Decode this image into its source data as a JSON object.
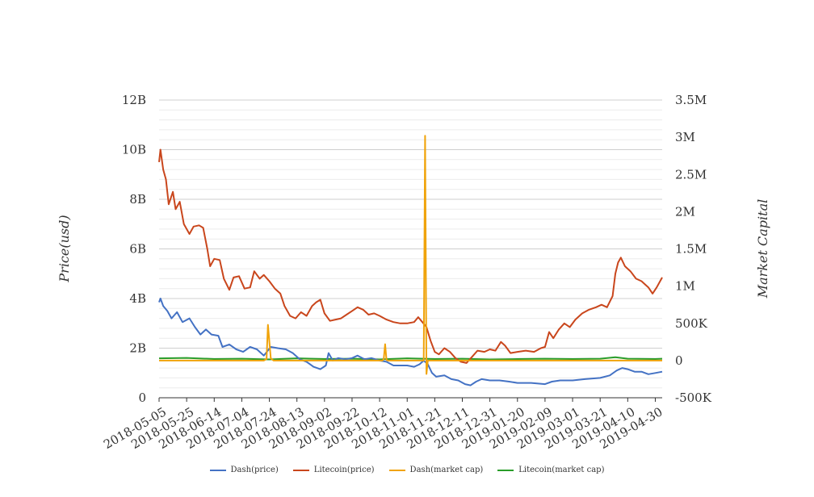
{
  "chart_data": {
    "type": "line",
    "y_left": {
      "label": "Price(usd)",
      "range": [
        0,
        12000000000
      ],
      "ticks": [
        0,
        2000000000,
        4000000000,
        6000000000,
        8000000000,
        10000000000,
        12000000000
      ],
      "tick_labels": [
        "0",
        "2B",
        "4B",
        "6B",
        "8B",
        "10B",
        "12B"
      ]
    },
    "y_right": {
      "label": "Market Capital",
      "range": [
        -500000,
        3500000
      ],
      "ticks": [
        -500000,
        0,
        500000,
        1000000,
        1500000,
        2000000,
        2500000,
        3000000,
        3500000
      ],
      "tick_labels": [
        "-500K",
        "0",
        "500K",
        "1M",
        "1.5M",
        "2M",
        "2.5M",
        "3M",
        "3.5M"
      ]
    },
    "x": {
      "range": [
        "2018-05-05",
        "2019-05-05"
      ],
      "tick_labels": [
        "2018-05-05",
        "2018-05-25",
        "2018-06-14",
        "2018-07-04",
        "2018-07-24",
        "2018-08-13",
        "2018-09-02",
        "2018-09-22",
        "2018-10-12",
        "2018-11-01",
        "2018-11-21",
        "2018-12-11",
        "2018-12-31",
        "2019-01-20",
        "2019-02-09",
        "2019-03-01",
        "2019-03-21",
        "2019-04-10",
        "2019-04-30"
      ]
    },
    "grid": true,
    "legend_position": "bottom",
    "series": [
      {
        "name": "Dash(price)",
        "axis": "left",
        "color": "#4472c4",
        "points": [
          [
            "2018-05-05",
            3.85
          ],
          [
            "2018-05-06",
            4.0
          ],
          [
            "2018-05-08",
            3.7
          ],
          [
            "2018-05-11",
            3.5
          ],
          [
            "2018-05-14",
            3.2
          ],
          [
            "2018-05-18",
            3.45
          ],
          [
            "2018-05-22",
            3.05
          ],
          [
            "2018-05-27",
            3.2
          ],
          [
            "2018-05-31",
            2.85
          ],
          [
            "2018-06-04",
            2.55
          ],
          [
            "2018-06-08",
            2.75
          ],
          [
            "2018-06-12",
            2.55
          ],
          [
            "2018-06-17",
            2.5
          ],
          [
            "2018-06-20",
            2.05
          ],
          [
            "2018-06-25",
            2.15
          ],
          [
            "2018-06-30",
            1.95
          ],
          [
            "2018-07-05",
            1.85
          ],
          [
            "2018-07-10",
            2.05
          ],
          [
            "2018-07-15",
            1.95
          ],
          [
            "2018-07-20",
            1.7
          ],
          [
            "2018-07-25",
            2.05
          ],
          [
            "2018-07-30",
            2.0
          ],
          [
            "2018-08-05",
            1.95
          ],
          [
            "2018-08-10",
            1.8
          ],
          [
            "2018-08-15",
            1.55
          ],
          [
            "2018-08-20",
            1.45
          ],
          [
            "2018-08-25",
            1.25
          ],
          [
            "2018-08-30",
            1.15
          ],
          [
            "2018-09-03",
            1.3
          ],
          [
            "2018-09-05",
            1.8
          ],
          [
            "2018-09-08",
            1.5
          ],
          [
            "2018-09-12",
            1.6
          ],
          [
            "2018-09-17",
            1.55
          ],
          [
            "2018-09-22",
            1.6
          ],
          [
            "2018-09-26",
            1.7
          ],
          [
            "2018-10-01",
            1.55
          ],
          [
            "2018-10-06",
            1.6
          ],
          [
            "2018-10-12",
            1.5
          ],
          [
            "2018-10-17",
            1.45
          ],
          [
            "2018-10-22",
            1.3
          ],
          [
            "2018-10-27",
            1.3
          ],
          [
            "2018-11-01",
            1.3
          ],
          [
            "2018-11-06",
            1.25
          ],
          [
            "2018-11-10",
            1.35
          ],
          [
            "2018-11-13",
            1.5
          ],
          [
            "2018-11-16",
            1.35
          ],
          [
            "2018-11-19",
            1.0
          ],
          [
            "2018-11-22",
            0.85
          ],
          [
            "2018-11-28",
            0.9
          ],
          [
            "2018-12-03",
            0.75
          ],
          [
            "2018-12-08",
            0.7
          ],
          [
            "2018-12-13",
            0.55
          ],
          [
            "2018-12-17",
            0.5
          ],
          [
            "2018-12-21",
            0.65
          ],
          [
            "2018-12-25",
            0.75
          ],
          [
            "2018-12-31",
            0.7
          ],
          [
            "2019-01-07",
            0.7
          ],
          [
            "2019-01-14",
            0.65
          ],
          [
            "2019-01-20",
            0.6
          ],
          [
            "2019-01-30",
            0.6
          ],
          [
            "2019-02-09",
            0.55
          ],
          [
            "2019-02-14",
            0.65
          ],
          [
            "2019-02-20",
            0.7
          ],
          [
            "2019-03-01",
            0.7
          ],
          [
            "2019-03-10",
            0.75
          ],
          [
            "2019-03-21",
            0.8
          ],
          [
            "2019-03-28",
            0.9
          ],
          [
            "2019-04-02",
            1.1
          ],
          [
            "2019-04-06",
            1.2
          ],
          [
            "2019-04-10",
            1.15
          ],
          [
            "2019-04-15",
            1.05
          ],
          [
            "2019-04-20",
            1.05
          ],
          [
            "2019-04-25",
            0.95
          ],
          [
            "2019-04-30",
            1.0
          ],
          [
            "2019-05-05",
            1.05
          ]
        ]
      },
      {
        "name": "Litecoin(price)",
        "axis": "left",
        "color": "#c9461c",
        "points": [
          [
            "2018-05-05",
            9.5
          ],
          [
            "2018-05-06",
            10.0
          ],
          [
            "2018-05-08",
            9.2
          ],
          [
            "2018-05-10",
            8.8
          ],
          [
            "2018-05-12",
            7.8
          ],
          [
            "2018-05-15",
            8.3
          ],
          [
            "2018-05-17",
            7.6
          ],
          [
            "2018-05-20",
            7.9
          ],
          [
            "2018-05-23",
            7.0
          ],
          [
            "2018-05-27",
            6.6
          ],
          [
            "2018-05-30",
            6.9
          ],
          [
            "2018-06-03",
            6.95
          ],
          [
            "2018-06-06",
            6.85
          ],
          [
            "2018-06-09",
            6.0
          ],
          [
            "2018-06-11",
            5.3
          ],
          [
            "2018-06-14",
            5.6
          ],
          [
            "2018-06-18",
            5.55
          ],
          [
            "2018-06-21",
            4.8
          ],
          [
            "2018-06-25",
            4.35
          ],
          [
            "2018-06-28",
            4.85
          ],
          [
            "2018-07-02",
            4.9
          ],
          [
            "2018-07-06",
            4.4
          ],
          [
            "2018-07-10",
            4.45
          ],
          [
            "2018-07-13",
            5.1
          ],
          [
            "2018-07-17",
            4.8
          ],
          [
            "2018-07-20",
            4.95
          ],
          [
            "2018-07-24",
            4.7
          ],
          [
            "2018-07-28",
            4.4
          ],
          [
            "2018-08-01",
            4.2
          ],
          [
            "2018-08-04",
            3.7
          ],
          [
            "2018-08-08",
            3.3
          ],
          [
            "2018-08-12",
            3.2
          ],
          [
            "2018-08-16",
            3.45
          ],
          [
            "2018-08-20",
            3.3
          ],
          [
            "2018-08-24",
            3.7
          ],
          [
            "2018-08-27",
            3.85
          ],
          [
            "2018-08-30",
            3.95
          ],
          [
            "2018-09-02",
            3.4
          ],
          [
            "2018-09-06",
            3.1
          ],
          [
            "2018-09-10",
            3.15
          ],
          [
            "2018-09-14",
            3.2
          ],
          [
            "2018-09-18",
            3.35
          ],
          [
            "2018-09-22",
            3.5
          ],
          [
            "2018-09-26",
            3.65
          ],
          [
            "2018-09-30",
            3.55
          ],
          [
            "2018-10-04",
            3.35
          ],
          [
            "2018-10-08",
            3.4
          ],
          [
            "2018-10-12",
            3.3
          ],
          [
            "2018-10-17",
            3.15
          ],
          [
            "2018-10-22",
            3.05
          ],
          [
            "2018-10-27",
            3.0
          ],
          [
            "2018-11-01",
            3.0
          ],
          [
            "2018-11-06",
            3.05
          ],
          [
            "2018-11-09",
            3.25
          ],
          [
            "2018-11-12",
            3.05
          ],
          [
            "2018-11-15",
            2.85
          ],
          [
            "2018-11-18",
            2.3
          ],
          [
            "2018-11-21",
            1.85
          ],
          [
            "2018-11-24",
            1.75
          ],
          [
            "2018-11-28",
            2.0
          ],
          [
            "2018-12-02",
            1.85
          ],
          [
            "2018-12-06",
            1.6
          ],
          [
            "2018-12-10",
            1.45
          ],
          [
            "2018-12-14",
            1.4
          ],
          [
            "2018-12-18",
            1.65
          ],
          [
            "2018-12-22",
            1.9
          ],
          [
            "2018-12-27",
            1.85
          ],
          [
            "2018-12-31",
            1.95
          ],
          [
            "2019-01-04",
            1.9
          ],
          [
            "2019-01-08",
            2.25
          ],
          [
            "2019-01-11",
            2.1
          ],
          [
            "2019-01-15",
            1.8
          ],
          [
            "2019-01-20",
            1.85
          ],
          [
            "2019-01-26",
            1.9
          ],
          [
            "2019-02-01",
            1.85
          ],
          [
            "2019-02-06",
            2.0
          ],
          [
            "2019-02-09",
            2.05
          ],
          [
            "2019-02-12",
            2.65
          ],
          [
            "2019-02-15",
            2.4
          ],
          [
            "2019-02-19",
            2.75
          ],
          [
            "2019-02-23",
            3.0
          ],
          [
            "2019-02-27",
            2.85
          ],
          [
            "2019-03-03",
            3.15
          ],
          [
            "2019-03-08",
            3.4
          ],
          [
            "2019-03-13",
            3.55
          ],
          [
            "2019-03-18",
            3.65
          ],
          [
            "2019-03-22",
            3.75
          ],
          [
            "2019-03-26",
            3.65
          ],
          [
            "2019-03-30",
            4.1
          ],
          [
            "2019-04-01",
            5.0
          ],
          [
            "2019-04-03",
            5.45
          ],
          [
            "2019-04-05",
            5.65
          ],
          [
            "2019-04-08",
            5.3
          ],
          [
            "2019-04-12",
            5.1
          ],
          [
            "2019-04-16",
            4.8
          ],
          [
            "2019-04-20",
            4.7
          ],
          [
            "2019-04-25",
            4.45
          ],
          [
            "2019-04-28",
            4.2
          ],
          [
            "2019-05-01",
            4.45
          ],
          [
            "2019-05-05",
            4.85
          ]
        ]
      },
      {
        "name": "Dash(market cap)",
        "axis": "right",
        "color": "#f0a30a",
        "points": [
          [
            "2018-05-05",
            0
          ],
          [
            "2018-07-20",
            0
          ],
          [
            "2018-07-22",
            20000
          ],
          [
            "2018-07-23",
            480000
          ],
          [
            "2018-07-25",
            30000
          ],
          [
            "2018-07-27",
            0
          ],
          [
            "2018-10-14",
            0
          ],
          [
            "2018-10-15",
            20000
          ],
          [
            "2018-10-16",
            220000
          ],
          [
            "2018-10-17",
            10000
          ],
          [
            "2018-10-18",
            0
          ],
          [
            "2018-11-13",
            0
          ],
          [
            "2018-11-14",
            3020000
          ],
          [
            "2018-11-15",
            -180000
          ],
          [
            "2018-11-16",
            0
          ],
          [
            "2019-05-05",
            0
          ]
        ]
      },
      {
        "name": "Litecoin(market cap)",
        "axis": "right",
        "color": "#2a9d2a",
        "points": [
          [
            "2018-05-05",
            30000
          ],
          [
            "2018-05-25",
            35000
          ],
          [
            "2018-06-14",
            20000
          ],
          [
            "2018-07-04",
            25000
          ],
          [
            "2018-07-24",
            15000
          ],
          [
            "2018-08-13",
            30000
          ],
          [
            "2018-09-02",
            20000
          ],
          [
            "2018-09-22",
            25000
          ],
          [
            "2018-10-12",
            15000
          ],
          [
            "2018-11-01",
            30000
          ],
          [
            "2018-11-21",
            20000
          ],
          [
            "2018-12-11",
            25000
          ],
          [
            "2018-12-31",
            15000
          ],
          [
            "2019-01-20",
            20000
          ],
          [
            "2019-02-09",
            25000
          ],
          [
            "2019-03-01",
            20000
          ],
          [
            "2019-03-21",
            25000
          ],
          [
            "2019-04-01",
            45000
          ],
          [
            "2019-04-10",
            25000
          ],
          [
            "2019-04-30",
            20000
          ],
          [
            "2019-05-05",
            25000
          ]
        ]
      }
    ]
  }
}
